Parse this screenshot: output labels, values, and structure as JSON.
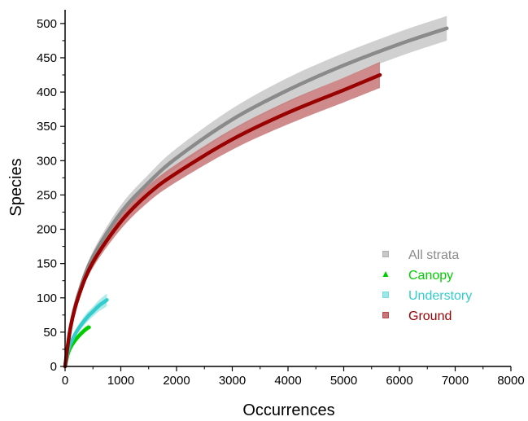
{
  "chart_data": {
    "type": "line",
    "title": "",
    "xlabel": "Occurrences",
    "ylabel": "Species",
    "xlim": [
      0,
      8000
    ],
    "ylim": [
      0,
      520
    ],
    "x_ticks": [
      0,
      1000,
      2000,
      3000,
      4000,
      5000,
      6000,
      7000,
      8000
    ],
    "y_ticks": [
      0,
      50,
      100,
      150,
      200,
      250,
      300,
      350,
      400,
      450,
      500
    ],
    "grid": false,
    "legend_position": "right",
    "series": [
      {
        "name": "All strata",
        "color": "#8a8a8a",
        "band_color": "#c8c8c8",
        "marker": "square",
        "x": [
          0,
          100,
          250,
          500,
          1000,
          1500,
          2000,
          3000,
          4000,
          5000,
          6000,
          6850
        ],
        "y": [
          0,
          58,
          108,
          160,
          224,
          268,
          304,
          360,
          403,
          439,
          470,
          493
        ],
        "lower": [
          0,
          54,
          102,
          152,
          213,
          256,
          290,
          344,
          385,
          421,
          452,
          475
        ],
        "upper": [
          0,
          62,
          114,
          168,
          235,
          280,
          318,
          376,
          421,
          457,
          488,
          511
        ]
      },
      {
        "name": "Canopy",
        "color": "#00cc00",
        "band_color": "#8ee88e",
        "marker": "triangle",
        "x": [
          0,
          50,
          100,
          200,
          300,
          400,
          430
        ],
        "y": [
          0,
          18,
          28,
          40,
          49,
          56,
          57
        ],
        "lower": [
          0,
          16,
          25,
          36,
          45,
          52,
          53
        ],
        "upper": [
          0,
          20,
          31,
          44,
          53,
          60,
          61
        ]
      },
      {
        "name": "Understory",
        "color": "#33cccc",
        "band_color": "#9fe6e6",
        "marker": "square",
        "x": [
          0,
          50,
          100,
          200,
          300,
          400,
          500,
          600,
          700,
          750
        ],
        "y": [
          0,
          22,
          34,
          50,
          62,
          72,
          80,
          88,
          94,
          97
        ],
        "lower": [
          0,
          19,
          30,
          45,
          56,
          65,
          73,
          80,
          85,
          88
        ],
        "upper": [
          0,
          25,
          38,
          55,
          68,
          79,
          87,
          96,
          103,
          106
        ]
      },
      {
        "name": "Ground",
        "color": "#990000",
        "band_color": "#c77777",
        "marker": "square",
        "x": [
          0,
          100,
          250,
          500,
          1000,
          1500,
          2000,
          3000,
          4000,
          5000,
          5650
        ],
        "y": [
          0,
          58,
          104,
          152,
          211,
          252,
          282,
          331,
          370,
          403,
          425
        ],
        "lower": [
          0,
          54,
          98,
          144,
          200,
          240,
          269,
          316,
          353,
          385,
          406
        ],
        "upper": [
          0,
          62,
          110,
          160,
          222,
          264,
          295,
          346,
          387,
          421,
          444
        ]
      }
    ]
  }
}
